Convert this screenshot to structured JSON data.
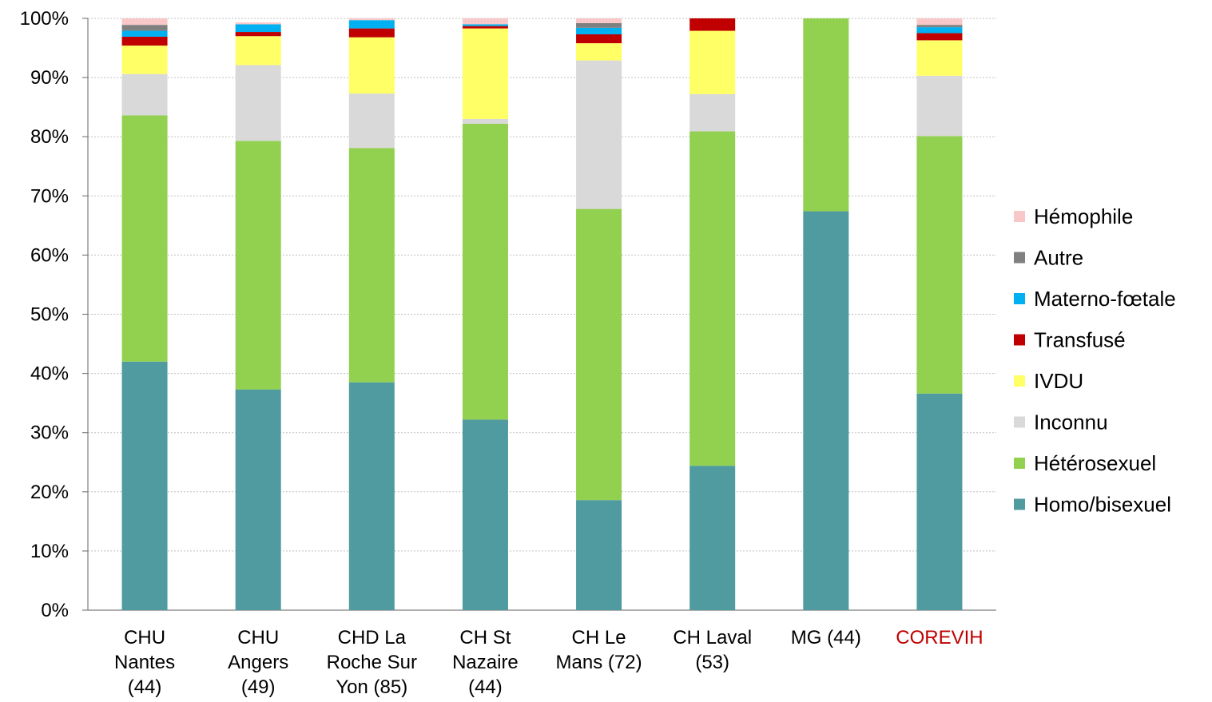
{
  "chart_data": {
    "type": "bar",
    "stacked": true,
    "percent": true,
    "title": "",
    "xlabel": "",
    "ylabel": "",
    "ylim": [
      0,
      100
    ],
    "yticks": [
      "0%",
      "10%",
      "20%",
      "30%",
      "40%",
      "50%",
      "60%",
      "70%",
      "80%",
      "90%",
      "100%"
    ],
    "grid": true,
    "legend_position": "right",
    "categories": [
      {
        "lines": [
          "CHU",
          "Nantes",
          "(44)"
        ],
        "color": "#000000"
      },
      {
        "lines": [
          "CHU",
          "Angers",
          "(49)"
        ],
        "color": "#000000"
      },
      {
        "lines": [
          "CHD La",
          "Roche Sur",
          "Yon (85)"
        ],
        "color": "#000000"
      },
      {
        "lines": [
          "CH St",
          "Nazaire",
          "(44)"
        ],
        "color": "#000000"
      },
      {
        "lines": [
          "CH Le",
          "Mans (72)"
        ],
        "color": "#000000"
      },
      {
        "lines": [
          "CH Laval",
          "(53)"
        ],
        "color": "#000000"
      },
      {
        "lines": [
          "MG (44)"
        ],
        "color": "#000000"
      },
      {
        "lines": [
          "COREVIH"
        ],
        "color": "#C00000"
      }
    ],
    "series": [
      {
        "name": "Homo/bisexuel",
        "color": "#4F9BA0",
        "values": [
          42.0,
          37.3,
          38.5,
          32.2,
          18.6,
          24.4,
          67.4,
          36.6
        ]
      },
      {
        "name": "Hétérosexuel",
        "color": "#92D050",
        "values": [
          41.6,
          42.0,
          39.6,
          50.0,
          49.2,
          56.5,
          32.6,
          43.5
        ]
      },
      {
        "name": "Inconnu",
        "color": "#D9D9D9",
        "values": [
          7.0,
          12.8,
          9.2,
          0.8,
          25.1,
          6.3,
          0.0,
          10.2
        ]
      },
      {
        "name": "IVDU",
        "color": "#FFFF66",
        "values": [
          4.8,
          4.9,
          9.5,
          15.3,
          2.9,
          10.7,
          0.0,
          6.0
        ]
      },
      {
        "name": "Transfusé",
        "color": "#C00000",
        "values": [
          1.5,
          0.7,
          1.5,
          0.4,
          1.5,
          2.1,
          0.0,
          1.2
        ]
      },
      {
        "name": "Materno-fœtale",
        "color": "#00B0F0",
        "values": [
          1.0,
          1.3,
          1.4,
          0.3,
          1.1,
          0.0,
          0.0,
          1.0
        ]
      },
      {
        "name": "Autre",
        "color": "#808080",
        "values": [
          1.0,
          0.0,
          0.0,
          0.0,
          0.8,
          0.0,
          0.0,
          0.4
        ]
      },
      {
        "name": "Hémophile",
        "color": "#F8C8C8",
        "values": [
          1.1,
          0.3,
          0.3,
          1.0,
          0.8,
          0.0,
          0.0,
          1.1
        ]
      }
    ]
  }
}
